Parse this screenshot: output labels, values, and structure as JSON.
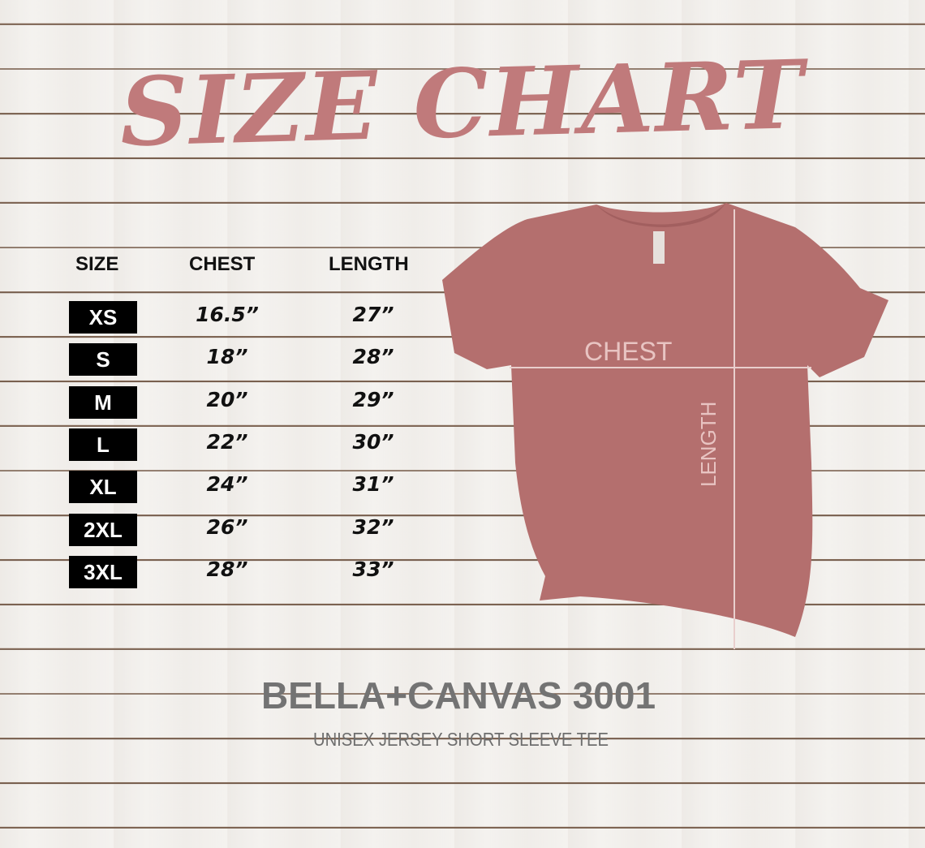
{
  "title": "SIZE CHART",
  "table": {
    "headers": [
      "SIZE",
      "CHEST",
      "LENGTH"
    ],
    "rows": [
      {
        "size": "XS",
        "chest": "16.5”",
        "length": "27”"
      },
      {
        "size": "S",
        "chest": "18”",
        "length": "28”"
      },
      {
        "size": "M",
        "chest": "20”",
        "length": "29”"
      },
      {
        "size": "L",
        "chest": "22”",
        "length": "30”"
      },
      {
        "size": "XL",
        "chest": "24”",
        "length": "31”"
      },
      {
        "size": "2XL",
        "chest": "26”",
        "length": "32”"
      },
      {
        "size": "3XL",
        "chest": "28”",
        "length": "33”"
      }
    ]
  },
  "shirt": {
    "chest_label": "CHEST",
    "length_label": "LENGTH",
    "color": "#b46f6e"
  },
  "brand": "BELLA+CANVAS 3001",
  "subtitle": "UNISEX JERSEY SHORT SLEEVE TEE",
  "colors": {
    "title": "#c07a7b",
    "brand": "#737373",
    "size_badge": "#000000"
  }
}
